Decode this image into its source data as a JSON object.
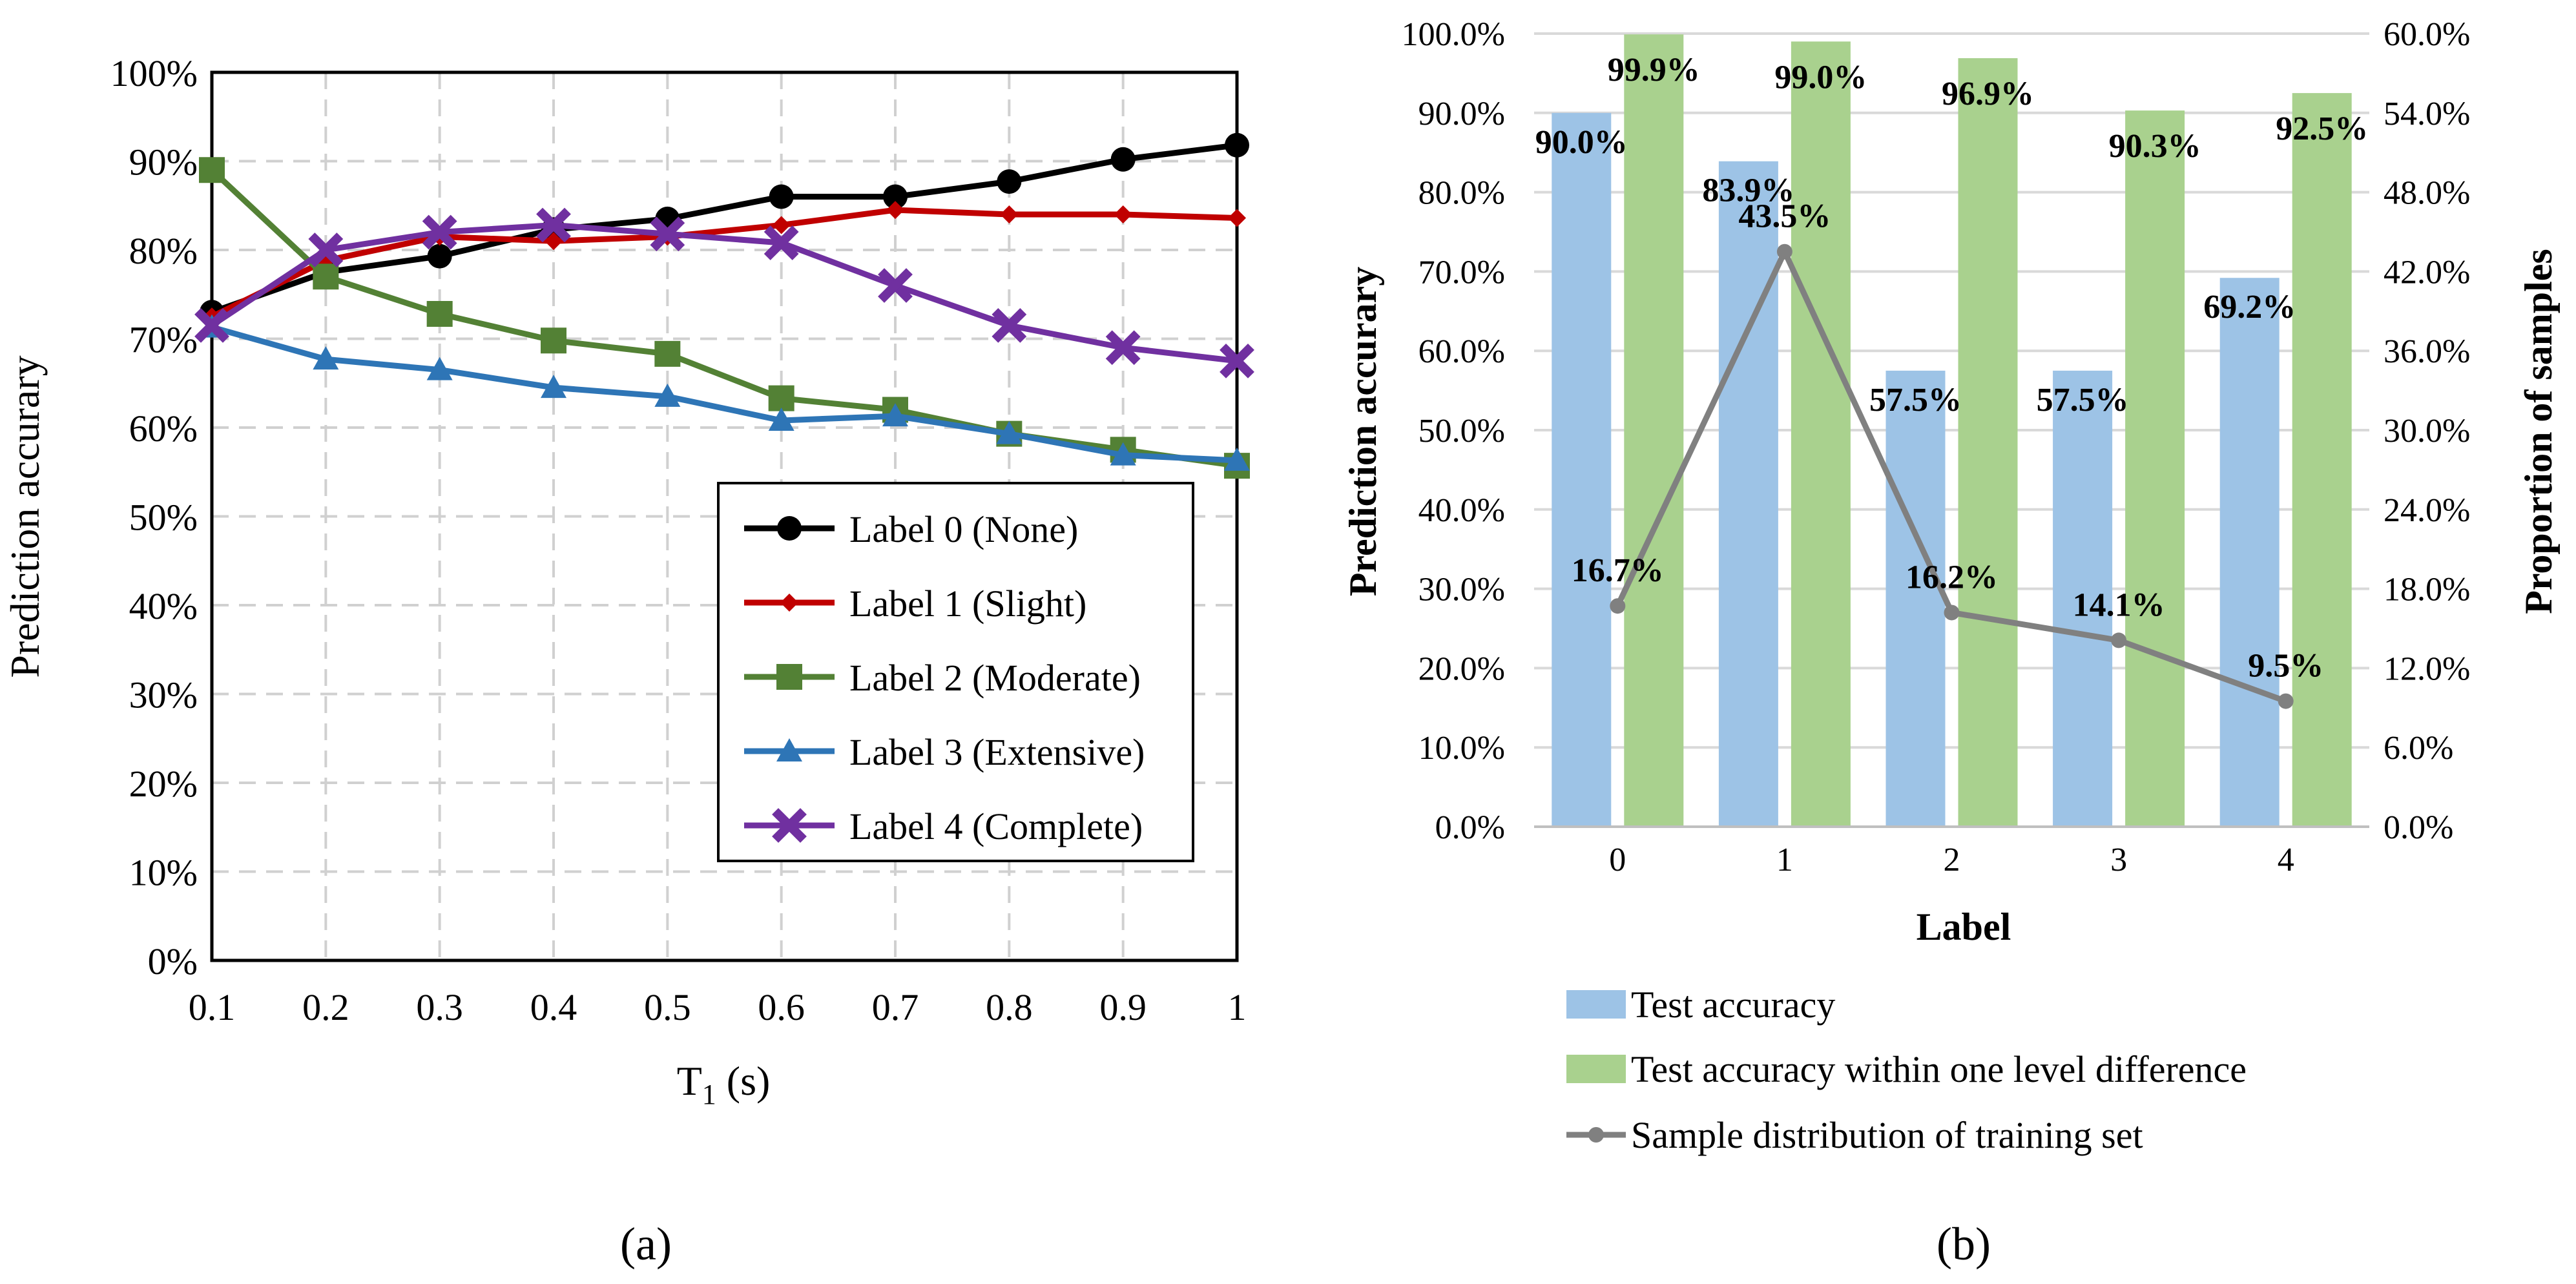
{
  "chart_data": [
    {
      "panel": "(a)",
      "type": "line",
      "xlabel_main": "T",
      "xlabel_sub": "1",
      "xlabel_unit": " (s)",
      "ylabel": "Prediction accurary",
      "x": [
        0.1,
        0.2,
        0.3,
        0.4,
        0.5,
        0.6,
        0.7,
        0.8,
        0.9,
        1
      ],
      "x_tick_labels": [
        "0.1",
        "0.2",
        "0.3",
        "0.4",
        "0.5",
        "0.6",
        "0.7",
        "0.8",
        "0.9",
        "1"
      ],
      "ylim": [
        0,
        100
      ],
      "y_tick_labels": [
        "0%",
        "10%",
        "20%",
        "30%",
        "40%",
        "50%",
        "60%",
        "70%",
        "80%",
        "90%",
        "100%"
      ],
      "grid": "dashed",
      "legend_position": "bottom-right",
      "series": [
        {
          "name": "Label 0 (None)",
          "color": "#000000",
          "marker": "circle",
          "values": [
            73,
            77.5,
            79.3,
            82.3,
            83.5,
            86,
            86,
            87.7,
            90.2,
            91.8
          ]
        },
        {
          "name": "Label 1 (Slight)",
          "color": "#c00000",
          "marker": "diamond",
          "values": [
            72.5,
            78.8,
            81.5,
            81,
            81.5,
            82.8,
            84.5,
            84,
            84,
            83.6
          ]
        },
        {
          "name": "Label 2 (Moderate)",
          "color": "#538135",
          "marker": "square",
          "values": [
            89,
            77,
            72.8,
            69.8,
            68.3,
            63.3,
            62,
            59.3,
            57.5,
            55.7
          ]
        },
        {
          "name": "Label 3 (Extensive)",
          "color": "#2e75b6",
          "marker": "triangle",
          "values": [
            71.3,
            67.7,
            66.5,
            64.5,
            63.5,
            60.8,
            61.3,
            59.3,
            56.9,
            56.3
          ]
        },
        {
          "name": "Label 4 (Complete)",
          "color": "#7030a0",
          "marker": "x",
          "values": [
            71.5,
            80,
            82,
            82.8,
            81.8,
            80.8,
            76,
            71.5,
            69,
            67.5
          ]
        }
      ]
    },
    {
      "panel": "(b)",
      "type": "bar",
      "categories": [
        "0",
        "1",
        "2",
        "3",
        "4"
      ],
      "xlabel": "Label",
      "ylabel": "Prediction accurary",
      "ylabel_right": "Proportion of samples",
      "ylim": [
        0,
        100
      ],
      "ylim_right": [
        0,
        60
      ],
      "y_tick_labels": [
        "0.0%",
        "10.0%",
        "20.0%",
        "30.0%",
        "40.0%",
        "50.0%",
        "60.0%",
        "70.0%",
        "80.0%",
        "90.0%",
        "100.0%"
      ],
      "y_right_tick_labels": [
        "0.0%",
        "6.0%",
        "12.0%",
        "18.0%",
        "24.0%",
        "30.0%",
        "36.0%",
        "42.0%",
        "48.0%",
        "54.0%",
        "60.0%"
      ],
      "grid": "horizontal",
      "legend_position": "bottom",
      "series": [
        {
          "name": "Test accuracy",
          "kind": "bar",
          "color": "#9dc3e6",
          "axis": "left",
          "values": [
            90.0,
            83.9,
            57.5,
            57.5,
            69.2
          ],
          "labels": [
            "90.0%",
            "83.9%",
            "57.5%",
            "57.5%",
            "69.2%"
          ]
        },
        {
          "name": "Test accuracy within one level difference",
          "kind": "bar",
          "color": "#a9d18e",
          "axis": "left",
          "values": [
            99.9,
            99.0,
            96.9,
            90.3,
            92.5
          ],
          "labels": [
            "99.9%",
            "99.0%",
            "96.9%",
            "90.3%",
            "92.5%"
          ]
        },
        {
          "name": "Sample distribution of training set",
          "kind": "line",
          "color": "#808080",
          "axis": "right",
          "values": [
            16.7,
            43.5,
            16.2,
            14.1,
            9.5
          ],
          "labels": [
            "16.7%",
            "43.5%",
            "16.2%",
            "14.1%",
            "9.5%"
          ]
        }
      ]
    }
  ]
}
